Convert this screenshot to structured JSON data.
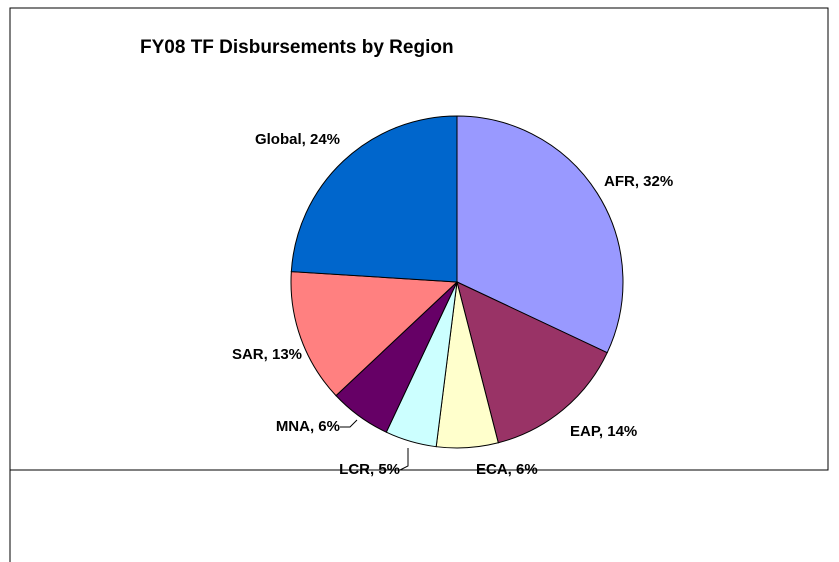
{
  "chart_data": {
    "type": "pie",
    "title": "FY08 TF Disbursements by Region",
    "categories": [
      "AFR",
      "EAP",
      "ECA",
      "LCR",
      "MNA",
      "SAR",
      "Global"
    ],
    "values": [
      32,
      14,
      6,
      5,
      6,
      13,
      24
    ],
    "value_labels": [
      "AFR, 32%",
      "EAP, 14%",
      "ECA, 6%",
      "LCR, 5%",
      "MNA, 6%",
      "SAR, 13%",
      "Global, 24%"
    ],
    "colors": [
      "#9999ff",
      "#993366",
      "#ffffcc",
      "#ccffff",
      "#660066",
      "#ff8080",
      "#0066cc"
    ]
  }
}
